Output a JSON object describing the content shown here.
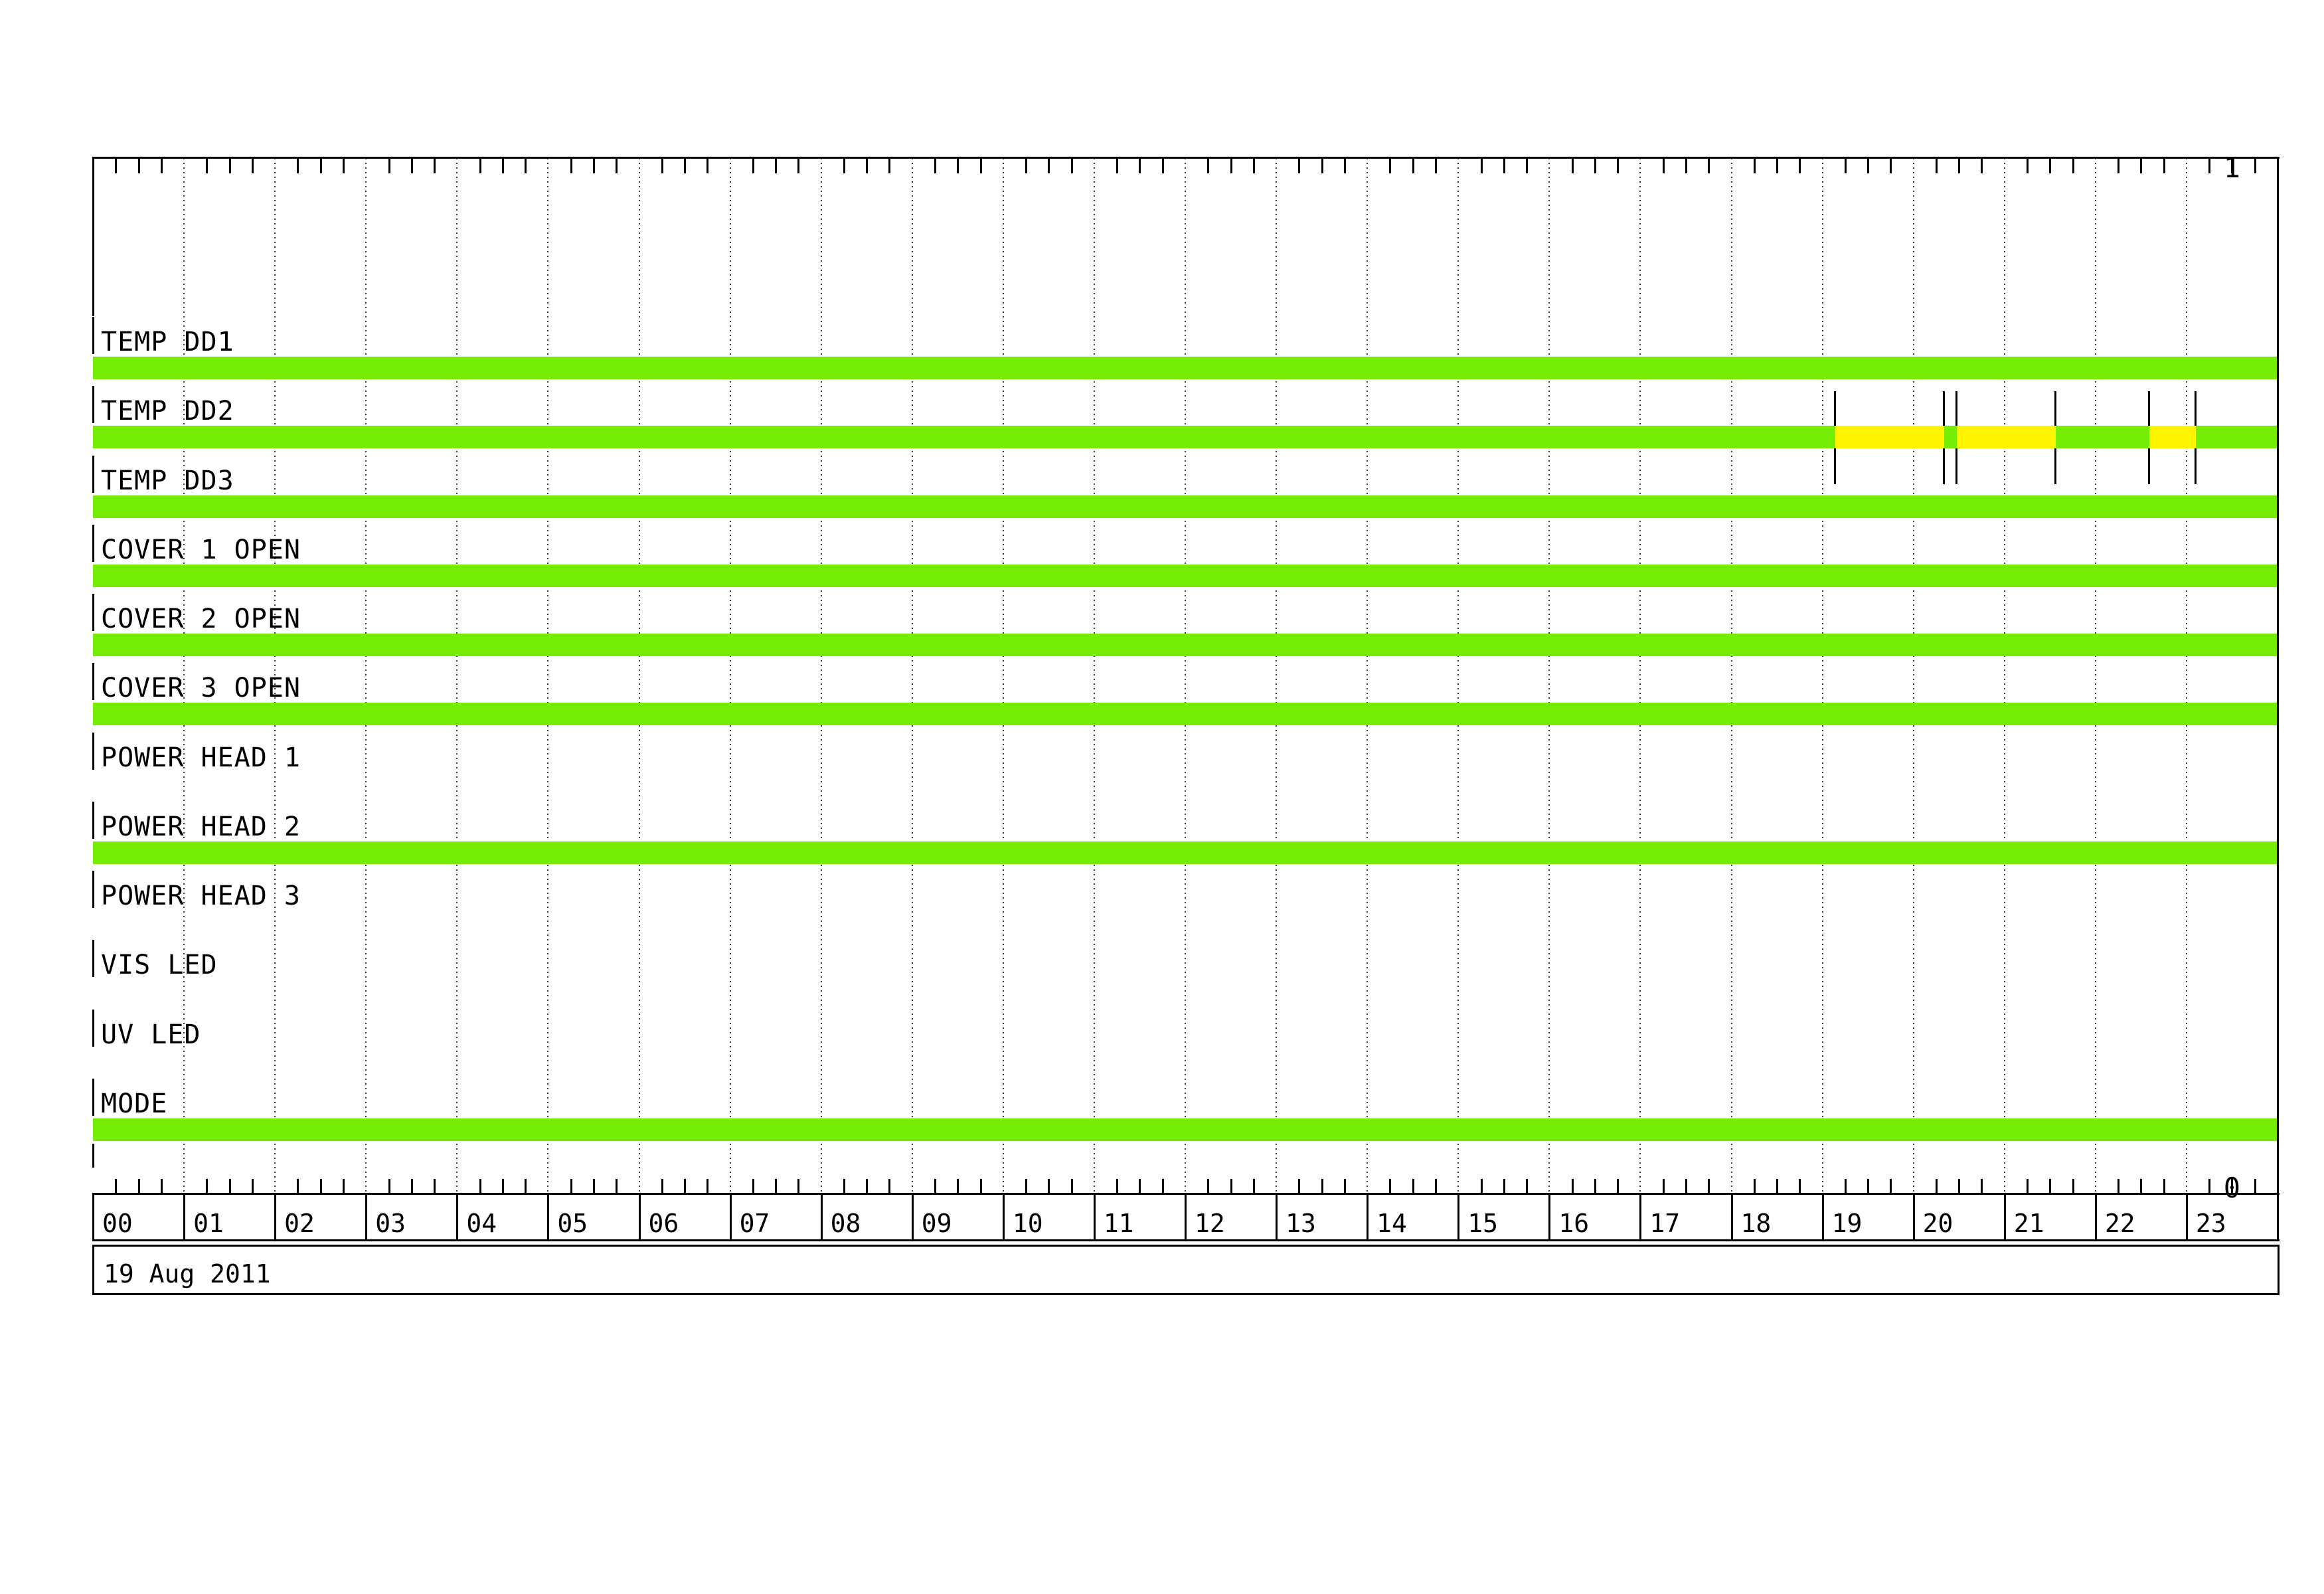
{
  "chart_data": {
    "type": "timeline",
    "title": "",
    "date_label": "19 Aug 2011",
    "y_axis": {
      "max_label": "1",
      "min_label": "0"
    },
    "x_axis": {
      "range_hours": [
        0,
        24
      ],
      "minor_tick_minutes": 15,
      "gridline_style": "dotted-hourly",
      "hour_labels": [
        "00",
        "01",
        "02",
        "03",
        "04",
        "05",
        "06",
        "07",
        "08",
        "09",
        "10",
        "11",
        "12",
        "13",
        "14",
        "15",
        "16",
        "17",
        "18",
        "19",
        "20",
        "21",
        "22",
        "23"
      ]
    },
    "colors": {
      "green": "#74EC04",
      "yellow": "#FFF400",
      "line": "#000000",
      "grid_dot": "#383838",
      "background": "#FFFFFF",
      "text": "#000000"
    },
    "rows": [
      {
        "label": "TEMP DD1",
        "segments": [
          {
            "start": 0,
            "end": 24,
            "state": "green"
          }
        ],
        "markers": []
      },
      {
        "label": "TEMP DD2",
        "segments": [
          {
            "start": 0,
            "end": 19.14,
            "state": "green"
          },
          {
            "start": 19.14,
            "end": 20.34,
            "state": "yellow"
          },
          {
            "start": 20.34,
            "end": 20.48,
            "state": "green"
          },
          {
            "start": 20.48,
            "end": 21.56,
            "state": "yellow"
          },
          {
            "start": 21.56,
            "end": 22.59,
            "state": "green"
          },
          {
            "start": 22.59,
            "end": 23.1,
            "state": "yellow"
          },
          {
            "start": 23.1,
            "end": 24,
            "state": "green"
          }
        ],
        "markers": [
          19.14,
          20.34,
          20.48,
          21.56,
          22.59,
          23.1
        ]
      },
      {
        "label": "TEMP DD3",
        "segments": [
          {
            "start": 0,
            "end": 24,
            "state": "green"
          }
        ],
        "markers": []
      },
      {
        "label": "COVER 1 OPEN",
        "segments": [
          {
            "start": 0,
            "end": 24,
            "state": "green"
          }
        ],
        "markers": []
      },
      {
        "label": "COVER 2 OPEN",
        "segments": [
          {
            "start": 0,
            "end": 24,
            "state": "green"
          }
        ],
        "markers": []
      },
      {
        "label": "COVER 3 OPEN",
        "segments": [
          {
            "start": 0,
            "end": 24,
            "state": "green"
          }
        ],
        "markers": []
      },
      {
        "label": "POWER HEAD 1",
        "segments": [],
        "markers": []
      },
      {
        "label": "POWER HEAD 2",
        "segments": [
          {
            "start": 0,
            "end": 24,
            "state": "green"
          }
        ],
        "markers": []
      },
      {
        "label": "POWER HEAD 3",
        "segments": [],
        "markers": []
      },
      {
        "label": "VIS LED",
        "segments": [],
        "markers": []
      },
      {
        "label": "UV LED",
        "segments": [],
        "markers": []
      },
      {
        "label": "MODE",
        "segments": [
          {
            "start": 0,
            "end": 24,
            "state": "green"
          }
        ],
        "markers": [],
        "end_stub": true
      }
    ]
  }
}
